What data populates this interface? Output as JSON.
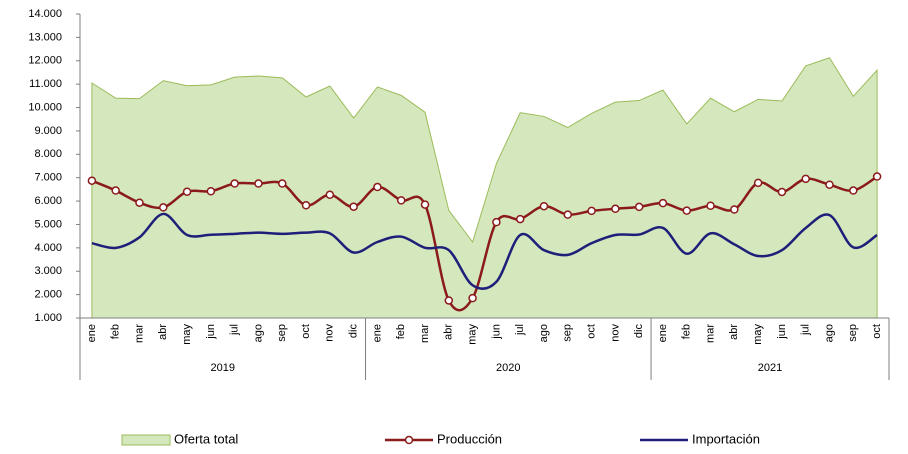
{
  "chart_data": {
    "type": "area-line",
    "categories": [
      "ene",
      "feb",
      "mar",
      "abr",
      "may",
      "jun",
      "jul",
      "ago",
      "sep",
      "oct",
      "nov",
      "dic",
      "ene",
      "feb",
      "mar",
      "abr",
      "may",
      "jun",
      "jul",
      "ago",
      "sep",
      "oct",
      "nov",
      "dic",
      "ene",
      "feb",
      "mar",
      "abr",
      "may",
      "jun",
      "jul",
      "ago",
      "sep",
      "oct"
    ],
    "x_groups": [
      {
        "label": "2019",
        "span": 12
      },
      {
        "label": "2020",
        "span": 12
      },
      {
        "label": "2021",
        "span": 10
      }
    ],
    "series": [
      {
        "name": "Oferta total",
        "kind": "area",
        "color": "#d4e7bd",
        "stroke": "#9bbb59",
        "values": [
          11050,
          10400,
          10380,
          11150,
          10930,
          10970,
          11300,
          11350,
          11270,
          10450,
          10920,
          9550,
          10880,
          10520,
          9800,
          5600,
          4250,
          7600,
          9780,
          9620,
          9150,
          9750,
          10230,
          10300,
          10750,
          9300,
          10400,
          9820,
          10350,
          10280,
          11780,
          12130,
          10480,
          11600
        ]
      },
      {
        "name": "Producción",
        "kind": "line-marker",
        "color": "#8b1a1a",
        "values": [
          6870,
          6450,
          5930,
          5730,
          6400,
          6420,
          6750,
          6750,
          6750,
          5820,
          6270,
          5760,
          6600,
          6030,
          5850,
          1750,
          1850,
          5100,
          5230,
          5780,
          5420,
          5580,
          5670,
          5750,
          5910,
          5590,
          5800,
          5640,
          6780,
          6390,
          6950,
          6700,
          6450,
          7050
        ]
      },
      {
        "name": "Importación",
        "kind": "line",
        "color": "#1f1f7a",
        "values": [
          4200,
          4000,
          4450,
          5450,
          4550,
          4560,
          4600,
          4650,
          4600,
          4650,
          4620,
          3800,
          4250,
          4480,
          4000,
          3900,
          2400,
          2550,
          4550,
          3900,
          3700,
          4200,
          4550,
          4570,
          4850,
          3750,
          4620,
          4150,
          3650,
          3900,
          4850,
          5400,
          4020,
          4550
        ]
      }
    ],
    "ylim": [
      1000,
      14000
    ],
    "yticks": [
      {
        "value": 1000,
        "label": "1.000"
      },
      {
        "value": 2000,
        "label": "2.000"
      },
      {
        "value": 3000,
        "label": "3.000"
      },
      {
        "value": 4000,
        "label": "4.000"
      },
      {
        "value": 5000,
        "label": "5.000"
      },
      {
        "value": 6000,
        "label": "6.000"
      },
      {
        "value": 7000,
        "label": "7.000"
      },
      {
        "value": 8000,
        "label": "8.000"
      },
      {
        "value": 9000,
        "label": "9.000"
      },
      {
        "value": 10000,
        "label": "10.000"
      },
      {
        "value": 11000,
        "label": "11.000"
      },
      {
        "value": 12000,
        "label": "12.000"
      },
      {
        "value": 13000,
        "label": "13.000"
      },
      {
        "value": 14000,
        "label": "14.000"
      }
    ],
    "grid": false,
    "legend": "bottom"
  }
}
